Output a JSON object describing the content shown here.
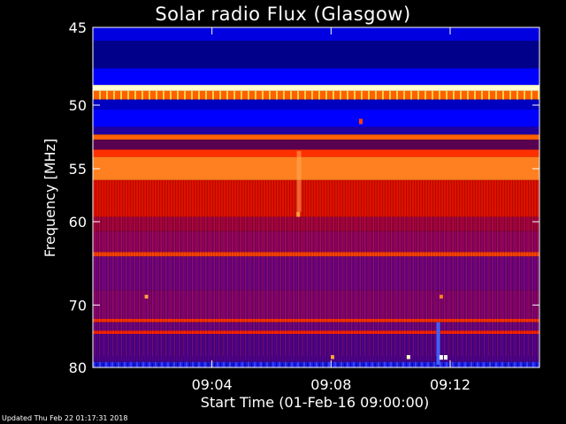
{
  "chart_data": {
    "type": "heatmap",
    "title": "Solar radio Flux (Glasgow)",
    "xlabel": "Start Time (01-Feb-16 09:00:00)",
    "ylabel": "Frequency [MHz]",
    "x_ticks": [
      "09:04",
      "09:08",
      "09:12"
    ],
    "x_tick_minutes": [
      4,
      8,
      12
    ],
    "xlim_minutes": [
      0,
      15
    ],
    "y_ticks": [
      45,
      50,
      55,
      60,
      70,
      80
    ],
    "ylim": [
      45,
      80
    ],
    "y_scale": "reciprocal",
    "colormap": [
      "#000000",
      "#0000ff",
      "#7f0080",
      "#e00000",
      "#ff6000",
      "#ffff60",
      "#ffffff"
    ],
    "bands": [
      {
        "f_from": 45,
        "f_to": 45.8,
        "color": "#0000e0"
      },
      {
        "f_from": 45.8,
        "f_to": 47.5,
        "color": "#00008a"
      },
      {
        "f_from": 47.5,
        "f_to": 48.6,
        "color": "#0000ff"
      },
      {
        "f_from": 48.6,
        "f_to": 49.0,
        "color": "#ffffd0"
      },
      {
        "f_from": 49.0,
        "f_to": 49.6,
        "color": "#ff6000"
      },
      {
        "f_from": 49.6,
        "f_to": 50.3,
        "color": "#0000c0"
      },
      {
        "f_from": 50.3,
        "f_to": 51.6,
        "color": "#0000ff"
      },
      {
        "f_from": 51.6,
        "f_to": 52.2,
        "color": "#2000a0"
      },
      {
        "f_from": 52.2,
        "f_to": 52.6,
        "color": "#ff6000"
      },
      {
        "f_from": 52.6,
        "f_to": 53.4,
        "color": "#5a0050"
      },
      {
        "f_from": 53.4,
        "f_to": 54.0,
        "color": "#ff3000"
      },
      {
        "f_from": 54.0,
        "f_to": 56.0,
        "color": "#ff8020"
      },
      {
        "f_from": 56.0,
        "f_to": 59.5,
        "color": "#e01000"
      },
      {
        "f_from": 59.5,
        "f_to": 61.0,
        "color": "#a00040"
      },
      {
        "f_from": 61.0,
        "f_to": 63.3,
        "color": "#900060"
      },
      {
        "f_from": 63.3,
        "f_to": 63.8,
        "color": "#ff4000"
      },
      {
        "f_from": 63.8,
        "f_to": 68.0,
        "color": "#700080"
      },
      {
        "f_from": 68.0,
        "f_to": 72.0,
        "color": "#800070"
      },
      {
        "f_from": 72.0,
        "f_to": 72.5,
        "color": "#ff3000"
      },
      {
        "f_from": 72.5,
        "f_to": 73.8,
        "color": "#6a0080"
      },
      {
        "f_from": 73.8,
        "f_to": 74.3,
        "color": "#ff2000"
      },
      {
        "f_from": 74.3,
        "f_to": 79.0,
        "color": "#50008a"
      },
      {
        "f_from": 79.0,
        "f_to": 80.0,
        "color": "#2020e0"
      }
    ],
    "bursts": [
      {
        "t": 11.6,
        "f_from": 72.5,
        "f_to": 79.5,
        "color": "#4060ff"
      },
      {
        "t": 11.7,
        "f_from": 77.8,
        "f_to": 78.6,
        "color": "#ffffff"
      },
      {
        "t": 11.85,
        "f_from": 77.8,
        "f_to": 78.6,
        "color": "#ffffff"
      },
      {
        "t": 10.6,
        "f_from": 77.8,
        "f_to": 78.5,
        "color": "#ffffc0"
      },
      {
        "t": 8.05,
        "f_from": 77.8,
        "f_to": 78.5,
        "color": "#ffa040"
      },
      {
        "t": 6.9,
        "f_from": 59.0,
        "f_to": 59.5,
        "color": "#ffa040"
      },
      {
        "t": 9.0,
        "f_from": 51.0,
        "f_to": 51.4,
        "color": "#ff4000"
      },
      {
        "t": 1.8,
        "f_from": 68.6,
        "f_to": 69.1,
        "color": "#ffa040"
      },
      {
        "t": 11.7,
        "f_from": 68.6,
        "f_to": 69.1,
        "color": "#ff8020"
      }
    ]
  },
  "footer": "Updated Thu Feb 22 01:17:31 2018"
}
